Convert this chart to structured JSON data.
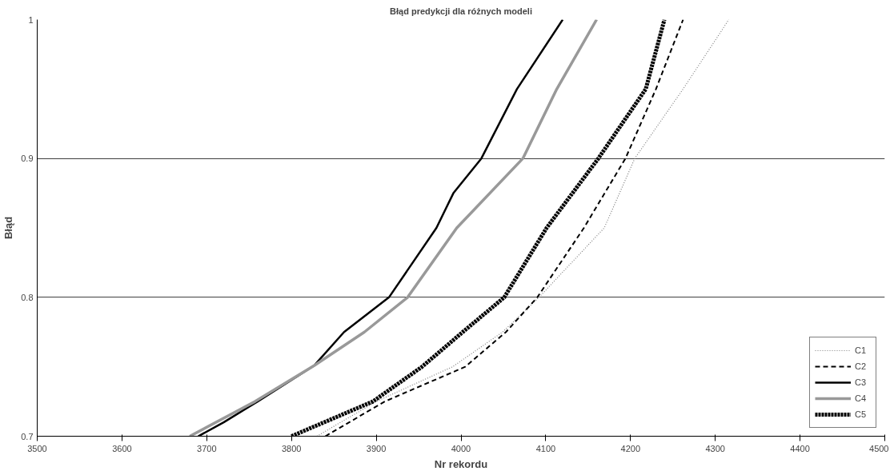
{
  "chart_data": {
    "type": "line",
    "title": "Błąd predykcji dla różnych modeli",
    "xlabel": "Nr rekordu",
    "ylabel": "Błąd",
    "xlim": [
      3500,
      4500
    ],
    "xticks": [
      3500,
      3600,
      3700,
      3800,
      3900,
      4000,
      4100,
      4200,
      4300,
      4400,
      4500
    ],
    "ylim": [
      0.7,
      1
    ],
    "yticks": [
      0.7,
      0.8,
      0.9,
      1
    ],
    "grid": "y",
    "legend": "bottom right",
    "marker": "none",
    "series": [
      {
        "name": "C1",
        "color": "#808080",
        "line_style": "dotted",
        "x": [
          3830,
          3900,
          3990,
          4049,
          4092,
          4169,
          4205,
          4262,
          4316
        ],
        "values": [
          0.7,
          0.725,
          0.75,
          0.775,
          0.8,
          0.85,
          0.9,
          0.95,
          1
        ]
      },
      {
        "name": "C2",
        "color": "#000000",
        "line_style": "dashed",
        "x": [
          3840,
          3910,
          4005,
          4053,
          4090,
          4145,
          4194,
          4230,
          4262
        ],
        "values": [
          0.7,
          0.725,
          0.75,
          0.775,
          0.8,
          0.85,
          0.9,
          0.95,
          1
        ]
      },
      {
        "name": "C3",
        "color": "#000000",
        "line_style": "solid",
        "x": [
          3690,
          3720,
          3760,
          3827,
          3862,
          3915,
          3971,
          3991,
          4024,
          4066,
          4120
        ],
        "values": [
          0.7,
          0.71,
          0.725,
          0.751,
          0.775,
          0.8,
          0.85,
          0.875,
          0.9,
          0.95,
          1
        ]
      },
      {
        "name": "C4",
        "color": "#999999",
        "line_style": "solid",
        "x": [
          3680,
          3757,
          3827,
          3886,
          3937,
          3995,
          4073,
          4113,
          4160
        ],
        "values": [
          0.7,
          0.725,
          0.751,
          0.775,
          0.8,
          0.85,
          0.9,
          0.95,
          1
        ]
      },
      {
        "name": "C5",
        "color": "#000000",
        "line_style": "dashed",
        "x": [
          3800,
          3896,
          3954,
          4002,
          4051,
          4101,
          4162,
          4218,
          4240
        ],
        "values": [
          0.7,
          0.725,
          0.75,
          0.775,
          0.8,
          0.85,
          0.9,
          0.95,
          1
        ]
      }
    ]
  }
}
